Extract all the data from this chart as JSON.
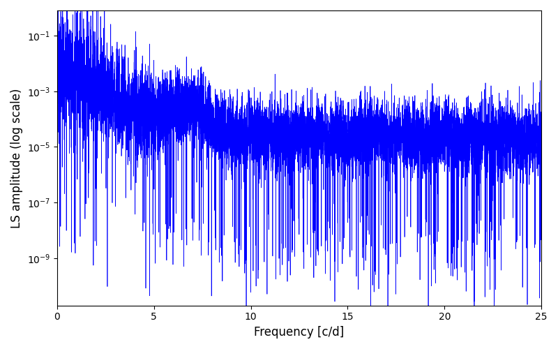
{
  "xlabel": "Frequency [c/d]",
  "ylabel": "LS amplitude (log scale)",
  "line_color": "#0000ff",
  "line_width": 0.5,
  "xmin": 0,
  "xmax": 25,
  "ymin": 2e-11,
  "ymax": 0.8,
  "yscale": "log",
  "figsize": [
    8.0,
    5.0
  ],
  "dpi": 100,
  "background_color": "#ffffff",
  "seed": 12345,
  "n_points": 8000
}
